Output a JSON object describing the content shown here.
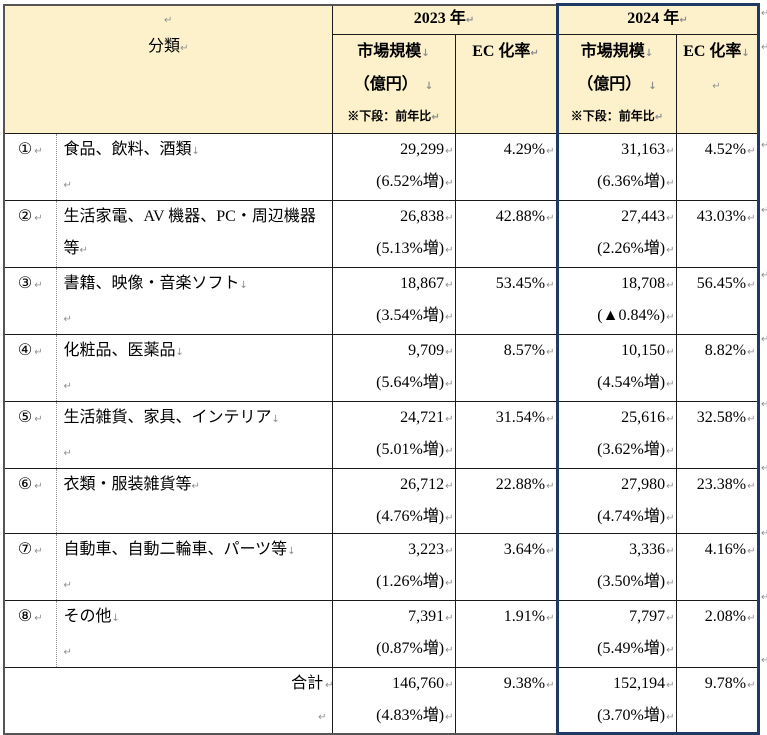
{
  "marks": {
    "cell_end": "↵",
    "line_break": "↓"
  },
  "colors": {
    "header_bg": "#FDF1CC",
    "accent_border_2024": "#1F3864",
    "grid_line": "#1b1b1b",
    "outer_border": "#555555",
    "dotted_divider": "#909090",
    "format_mark": "#8f8f8f"
  },
  "table": {
    "header": {
      "category": "分類",
      "y2023": "2023 年",
      "y2024": "2024 年",
      "market_size": "市場規模",
      "unit": "（億円）",
      "note": "※下段：前年比",
      "ec_rate": "EC 化率"
    },
    "rows": [
      {
        "no": "①",
        "category": "食品、飲料、酒類",
        "cat_mark": "↓",
        "cat_line2": true,
        "v23": "29,299",
        "g23": "(6.52%増)",
        "e23": "4.29%",
        "v24": "31,163",
        "g24": "(6.36%増)",
        "e24": "4.52%"
      },
      {
        "no": "②",
        "category": "生活家電、AV 機器、PC・周辺機器等",
        "cat_mark": "↵",
        "cat_line2": false,
        "v23": "26,838",
        "g23": "(5.13%増)",
        "e23": "42.88%",
        "v24": "27,443",
        "g24": "(2.26%増)",
        "e24": "43.03%"
      },
      {
        "no": "③",
        "category": "書籍、映像・音楽ソフト",
        "cat_mark": "↓",
        "cat_line2": true,
        "v23": "18,867",
        "g23": "(3.54%増)",
        "e23": "53.45%",
        "v24": "18,708",
        "g24": "(▲0.84%)",
        "e24": "56.45%"
      },
      {
        "no": "④",
        "category": "化粧品、医薬品",
        "cat_mark": "↓",
        "cat_line2": true,
        "v23": "9,709",
        "g23": "(5.64%増)",
        "e23": "8.57%",
        "v24": "10,150",
        "g24": "(4.54%増)",
        "e24": "8.82%"
      },
      {
        "no": "⑤",
        "category": "生活雑貨、家具、インテリア",
        "cat_mark": "↓",
        "cat_line2": true,
        "v23": "24,721",
        "g23": "(5.01%増)",
        "e23": "31.54%",
        "v24": "25,616",
        "g24": "(3.62%増)",
        "e24": "32.58%"
      },
      {
        "no": "⑥",
        "category": "衣類・服装雑貨等",
        "cat_mark": "↵",
        "cat_line2": false,
        "v23": "26,712",
        "g23": "(4.76%増)",
        "e23": "22.88%",
        "v24": "27,980",
        "g24": "(4.74%増)",
        "e24": "23.38%"
      },
      {
        "no": "⑦",
        "category": "自動車、自動二輪車、パーツ等",
        "cat_mark": "↓",
        "cat_line2": true,
        "v23": "3,223",
        "g23": "(1.26%増)",
        "e23": "3.64%",
        "v24": "3,336",
        "g24": "(3.50%増)",
        "e24": "4.16%"
      },
      {
        "no": "⑧",
        "category": "その他",
        "cat_mark": "↓",
        "cat_line2": true,
        "v23": "7,391",
        "g23": "(0.87%増)",
        "e23": "1.91%",
        "v24": "7,797",
        "g24": "(5.49%増)",
        "e24": "2.08%"
      }
    ],
    "total": {
      "label": "合計",
      "v23": "146,760",
      "g23": "(4.83%増)",
      "e23": "9.38%",
      "v24": "152,194",
      "g24": "(3.70%増)",
      "e24": "9.78%"
    }
  },
  "chart_data": {
    "type": "table",
    "columns": [
      "分類",
      "2023年 市場規模（億円）",
      "2023年 前年比",
      "2023年 EC化率",
      "2024年 市場規模（億円）",
      "2024年 前年比",
      "2024年 EC化率"
    ],
    "rows": [
      [
        "① 食品、飲料、酒類",
        29299,
        "6.52%増",
        "4.29%",
        31163,
        "6.36%増",
        "4.52%"
      ],
      [
        "② 生活家電、AV 機器、PC・周辺機器等",
        26838,
        "5.13%増",
        "42.88%",
        27443,
        "2.26%増",
        "43.03%"
      ],
      [
        "③ 書籍、映像・音楽ソフト",
        18867,
        "3.54%増",
        "53.45%",
        18708,
        "▲0.84%",
        "56.45%"
      ],
      [
        "④ 化粧品、医薬品",
        9709,
        "5.64%増",
        "8.57%",
        10150,
        "4.54%増",
        "8.82%"
      ],
      [
        "⑤ 生活雑貨、家具、インテリア",
        24721,
        "5.01%増",
        "31.54%",
        25616,
        "3.62%増",
        "32.58%"
      ],
      [
        "⑥ 衣類・服装雑貨等",
        26712,
        "4.76%増",
        "22.88%",
        27980,
        "4.74%増",
        "23.38%"
      ],
      [
        "⑦ 自動車、自動二輪車、パーツ等",
        3223,
        "1.26%増",
        "3.64%",
        3336,
        "3.50%増",
        "4.16%"
      ],
      [
        "⑧ その他",
        7391,
        "0.87%増",
        "1.91%",
        7797,
        "5.49%増",
        "2.08%"
      ],
      [
        "合計",
        146760,
        "4.83%増",
        "9.38%",
        152194,
        "3.70%増",
        "9.78%"
      ]
    ]
  }
}
